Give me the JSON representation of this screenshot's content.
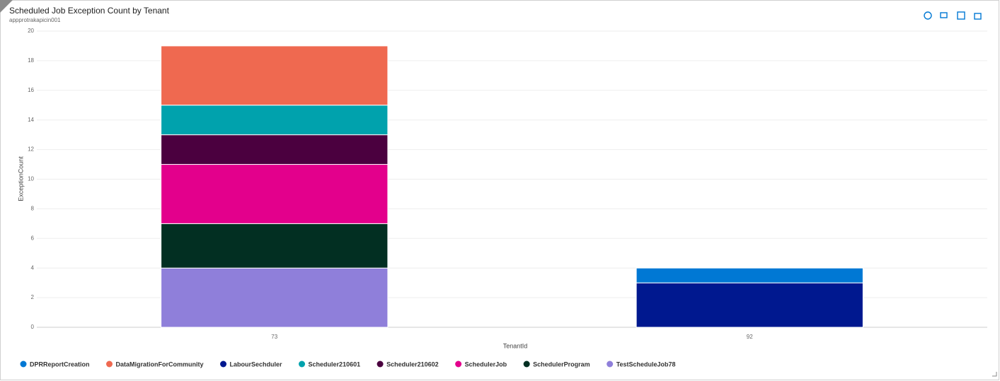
{
  "chart_data": {
    "type": "stacked-bar",
    "title": "Scheduled Job Exception Count by Tenant",
    "subtitle": "appprotrakapicin001",
    "x_label": "TenantId",
    "y_label": "ExceptionCount",
    "categories": [
      "73",
      "92"
    ],
    "series": [
      {
        "name": "DPRReportCreation",
        "color": "#0078d4",
        "values": [
          null,
          1
        ]
      },
      {
        "name": "DataMigrationForCommunity",
        "color": "#ef6950",
        "values": [
          4,
          null
        ]
      },
      {
        "name": "LabourSechduler",
        "color": "#00188f",
        "values": [
          null,
          3
        ]
      },
      {
        "name": "Scheduler210601",
        "color": "#00a2ad",
        "values": [
          2,
          null
        ]
      },
      {
        "name": "Scheduler210602",
        "color": "#4b003f",
        "values": [
          2,
          null
        ]
      },
      {
        "name": "SchedulerJob",
        "color": "#e3008c",
        "values": [
          4,
          null
        ]
      },
      {
        "name": "SchedulerProgram",
        "color": "#022f22",
        "values": [
          3,
          null
        ]
      },
      {
        "name": "TestScheduleJob78",
        "color": "#8f7fda",
        "values": [
          4,
          null
        ]
      }
    ],
    "ylim": [
      0,
      20
    ],
    "yticks": [
      0,
      2,
      4,
      6,
      8,
      10,
      12,
      14,
      16,
      18,
      20
    ],
    "grid": true
  }
}
